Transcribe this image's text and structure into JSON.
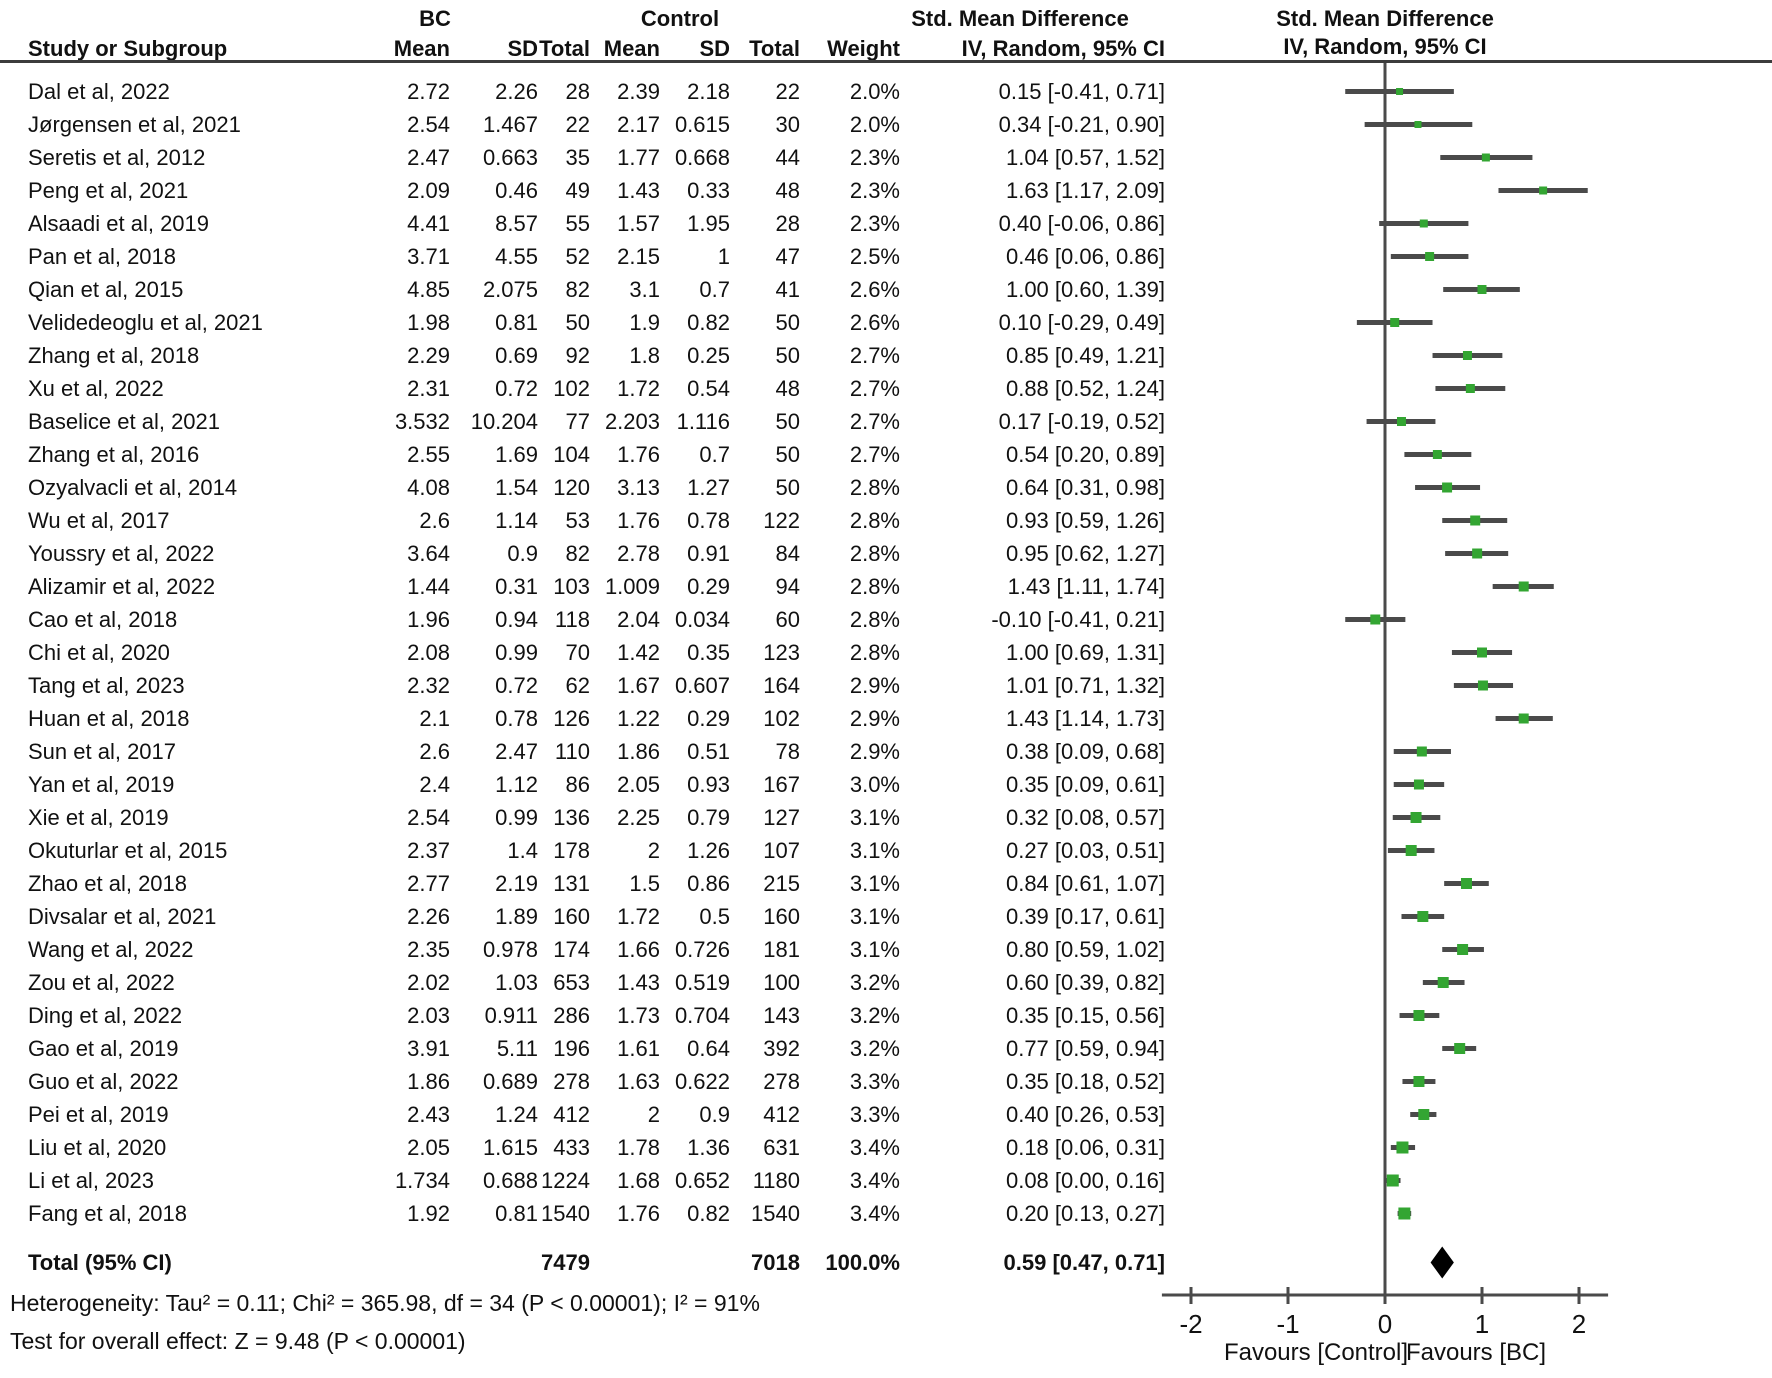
{
  "table": {
    "group_headers": {
      "bc": "BC",
      "control": "Control",
      "smd": "Std. Mean Difference"
    },
    "columns": {
      "study": "Study or Subgroup",
      "mean": "Mean",
      "sd": "SD",
      "total": "Total",
      "weight": "Weight",
      "ci": "IV, Random, 95% CI"
    },
    "heterogeneity": "Heterogeneity: Tau² = 0.11; Chi² = 365.98, df = 34 (P < 0.00001); I² = 91%",
    "overall_effect": "Test for overall effect: Z = 9.48 (P < 0.00001)"
  },
  "plot": {
    "header_line1": "Std. Mean Difference",
    "header_line2": "IV, Random, 95% CI",
    "line_color": "#4a4a4a",
    "marker_color": "#33a532",
    "diamond_color": "#000000"
  },
  "chart_data": {
    "type": "forest",
    "title": "Std. Mean Difference, IV, Random, 95% CI",
    "x_ticks": [
      -2,
      -1,
      0,
      1,
      2
    ],
    "x_range": [
      -2.3,
      2.3
    ],
    "favours": [
      "Favours [Control]",
      "Favours [BC]"
    ],
    "studies": [
      {
        "study": "Dal et al, 2022",
        "bc_mean": "2.72",
        "bc_sd": "2.26",
        "bc_total": "28",
        "c_mean": "2.39",
        "c_sd": "2.18",
        "c_total": "22",
        "weight": "2.0%",
        "weight_pct": 2.0,
        "smd": 0.15,
        "ci_low": -0.41,
        "ci_high": 0.71,
        "label": "0.15 [-0.41, 0.71]"
      },
      {
        "study": "Jørgensen et al, 2021",
        "bc_mean": "2.54",
        "bc_sd": "1.467",
        "bc_total": "22",
        "c_mean": "2.17",
        "c_sd": "0.615",
        "c_total": "30",
        "weight": "2.0%",
        "weight_pct": 2.0,
        "smd": 0.34,
        "ci_low": -0.21,
        "ci_high": 0.9,
        "label": "0.34 [-0.21, 0.90]"
      },
      {
        "study": "Seretis et al, 2012",
        "bc_mean": "2.47",
        "bc_sd": "0.663",
        "bc_total": "35",
        "c_mean": "1.77",
        "c_sd": "0.668",
        "c_total": "44",
        "weight": "2.3%",
        "weight_pct": 2.3,
        "smd": 1.04,
        "ci_low": 0.57,
        "ci_high": 1.52,
        "label": "1.04 [0.57, 1.52]"
      },
      {
        "study": "Peng et al, 2021",
        "bc_mean": "2.09",
        "bc_sd": "0.46",
        "bc_total": "49",
        "c_mean": "1.43",
        "c_sd": "0.33",
        "c_total": "48",
        "weight": "2.3%",
        "weight_pct": 2.3,
        "smd": 1.63,
        "ci_low": 1.17,
        "ci_high": 2.09,
        "label": "1.63 [1.17, 2.09]"
      },
      {
        "study": "Alsaadi et al, 2019",
        "bc_mean": "4.41",
        "bc_sd": "8.57",
        "bc_total": "55",
        "c_mean": "1.57",
        "c_sd": "1.95",
        "c_total": "28",
        "weight": "2.3%",
        "weight_pct": 2.3,
        "smd": 0.4,
        "ci_low": -0.06,
        "ci_high": 0.86,
        "label": "0.40 [-0.06, 0.86]"
      },
      {
        "study": "Pan et al, 2018",
        "bc_mean": "3.71",
        "bc_sd": "4.55",
        "bc_total": "52",
        "c_mean": "2.15",
        "c_sd": "1",
        "c_total": "47",
        "weight": "2.5%",
        "weight_pct": 2.5,
        "smd": 0.46,
        "ci_low": 0.06,
        "ci_high": 0.86,
        "label": "0.46 [0.06, 0.86]"
      },
      {
        "study": "Qian et al, 2015",
        "bc_mean": "4.85",
        "bc_sd": "2.075",
        "bc_total": "82",
        "c_mean": "3.1",
        "c_sd": "0.7",
        "c_total": "41",
        "weight": "2.6%",
        "weight_pct": 2.6,
        "smd": 1.0,
        "ci_low": 0.6,
        "ci_high": 1.39,
        "label": "1.00 [0.60, 1.39]"
      },
      {
        "study": "Velidedeoglu et al, 2021",
        "bc_mean": "1.98",
        "bc_sd": "0.81",
        "bc_total": "50",
        "c_mean": "1.9",
        "c_sd": "0.82",
        "c_total": "50",
        "weight": "2.6%",
        "weight_pct": 2.6,
        "smd": 0.1,
        "ci_low": -0.29,
        "ci_high": 0.49,
        "label": "0.10 [-0.29, 0.49]"
      },
      {
        "study": "Zhang et al, 2018",
        "bc_mean": "2.29",
        "bc_sd": "0.69",
        "bc_total": "92",
        "c_mean": "1.8",
        "c_sd": "0.25",
        "c_total": "50",
        "weight": "2.7%",
        "weight_pct": 2.7,
        "smd": 0.85,
        "ci_low": 0.49,
        "ci_high": 1.21,
        "label": "0.85 [0.49, 1.21]"
      },
      {
        "study": "Xu et al, 2022",
        "bc_mean": "2.31",
        "bc_sd": "0.72",
        "bc_total": "102",
        "c_mean": "1.72",
        "c_sd": "0.54",
        "c_total": "48",
        "weight": "2.7%",
        "weight_pct": 2.7,
        "smd": 0.88,
        "ci_low": 0.52,
        "ci_high": 1.24,
        "label": "0.88 [0.52, 1.24]"
      },
      {
        "study": "Baselice et al, 2021",
        "bc_mean": "3.532",
        "bc_sd": "10.204",
        "bc_total": "77",
        "c_mean": "2.203",
        "c_sd": "1.116",
        "c_total": "50",
        "weight": "2.7%",
        "weight_pct": 2.7,
        "smd": 0.17,
        "ci_low": -0.19,
        "ci_high": 0.52,
        "label": "0.17 [-0.19, 0.52]"
      },
      {
        "study": "Zhang et al, 2016",
        "bc_mean": "2.55",
        "bc_sd": "1.69",
        "bc_total": "104",
        "c_mean": "1.76",
        "c_sd": "0.7",
        "c_total": "50",
        "weight": "2.7%",
        "weight_pct": 2.7,
        "smd": 0.54,
        "ci_low": 0.2,
        "ci_high": 0.89,
        "label": "0.54 [0.20, 0.89]"
      },
      {
        "study": "Ozyalvacli et al, 2014",
        "bc_mean": "4.08",
        "bc_sd": "1.54",
        "bc_total": "120",
        "c_mean": "3.13",
        "c_sd": "1.27",
        "c_total": "50",
        "weight": "2.8%",
        "weight_pct": 2.8,
        "smd": 0.64,
        "ci_low": 0.31,
        "ci_high": 0.98,
        "label": "0.64 [0.31, 0.98]"
      },
      {
        "study": "Wu et al, 2017",
        "bc_mean": "2.6",
        "bc_sd": "1.14",
        "bc_total": "53",
        "c_mean": "1.76",
        "c_sd": "0.78",
        "c_total": "122",
        "weight": "2.8%",
        "weight_pct": 2.8,
        "smd": 0.93,
        "ci_low": 0.59,
        "ci_high": 1.26,
        "label": "0.93 [0.59, 1.26]"
      },
      {
        "study": "Youssry et al, 2022",
        "bc_mean": "3.64",
        "bc_sd": "0.9",
        "bc_total": "82",
        "c_mean": "2.78",
        "c_sd": "0.91",
        "c_total": "84",
        "weight": "2.8%",
        "weight_pct": 2.8,
        "smd": 0.95,
        "ci_low": 0.62,
        "ci_high": 1.27,
        "label": "0.95 [0.62, 1.27]"
      },
      {
        "study": "Alizamir et al, 2022",
        "bc_mean": "1.44",
        "bc_sd": "0.31",
        "bc_total": "103",
        "c_mean": "1.009",
        "c_sd": "0.29",
        "c_total": "94",
        "weight": "2.8%",
        "weight_pct": 2.8,
        "smd": 1.43,
        "ci_low": 1.11,
        "ci_high": 1.74,
        "label": "1.43 [1.11, 1.74]"
      },
      {
        "study": "Cao et al, 2018",
        "bc_mean": "1.96",
        "bc_sd": "0.94",
        "bc_total": "118",
        "c_mean": "2.04",
        "c_sd": "0.034",
        "c_total": "60",
        "weight": "2.8%",
        "weight_pct": 2.8,
        "smd": -0.1,
        "ci_low": -0.41,
        "ci_high": 0.21,
        "label": "-0.10 [-0.41, 0.21]"
      },
      {
        "study": "Chi et al, 2020",
        "bc_mean": "2.08",
        "bc_sd": "0.99",
        "bc_total": "70",
        "c_mean": "1.42",
        "c_sd": "0.35",
        "c_total": "123",
        "weight": "2.8%",
        "weight_pct": 2.8,
        "smd": 1.0,
        "ci_low": 0.69,
        "ci_high": 1.31,
        "label": "1.00 [0.69, 1.31]"
      },
      {
        "study": "Tang et al, 2023",
        "bc_mean": "2.32",
        "bc_sd": "0.72",
        "bc_total": "62",
        "c_mean": "1.67",
        "c_sd": "0.607",
        "c_total": "164",
        "weight": "2.9%",
        "weight_pct": 2.9,
        "smd": 1.01,
        "ci_low": 0.71,
        "ci_high": 1.32,
        "label": "1.01 [0.71, 1.32]"
      },
      {
        "study": "Huan et al, 2018",
        "bc_mean": "2.1",
        "bc_sd": "0.78",
        "bc_total": "126",
        "c_mean": "1.22",
        "c_sd": "0.29",
        "c_total": "102",
        "weight": "2.9%",
        "weight_pct": 2.9,
        "smd": 1.43,
        "ci_low": 1.14,
        "ci_high": 1.73,
        "label": "1.43 [1.14, 1.73]"
      },
      {
        "study": "Sun et al, 2017",
        "bc_mean": "2.6",
        "bc_sd": "2.47",
        "bc_total": "110",
        "c_mean": "1.86",
        "c_sd": "0.51",
        "c_total": "78",
        "weight": "2.9%",
        "weight_pct": 2.9,
        "smd": 0.38,
        "ci_low": 0.09,
        "ci_high": 0.68,
        "label": "0.38 [0.09, 0.68]"
      },
      {
        "study": "Yan et al, 2019",
        "bc_mean": "2.4",
        "bc_sd": "1.12",
        "bc_total": "86",
        "c_mean": "2.05",
        "c_sd": "0.93",
        "c_total": "167",
        "weight": "3.0%",
        "weight_pct": 3.0,
        "smd": 0.35,
        "ci_low": 0.09,
        "ci_high": 0.61,
        "label": "0.35 [0.09, 0.61]"
      },
      {
        "study": "Xie et al, 2019",
        "bc_mean": "2.54",
        "bc_sd": "0.99",
        "bc_total": "136",
        "c_mean": "2.25",
        "c_sd": "0.79",
        "c_total": "127",
        "weight": "3.1%",
        "weight_pct": 3.1,
        "smd": 0.32,
        "ci_low": 0.08,
        "ci_high": 0.57,
        "label": "0.32 [0.08, 0.57]"
      },
      {
        "study": "Okuturlar et al, 2015",
        "bc_mean": "2.37",
        "bc_sd": "1.4",
        "bc_total": "178",
        "c_mean": "2",
        "c_sd": "1.26",
        "c_total": "107",
        "weight": "3.1%",
        "weight_pct": 3.1,
        "smd": 0.27,
        "ci_low": 0.03,
        "ci_high": 0.51,
        "label": "0.27 [0.03, 0.51]"
      },
      {
        "study": "Zhao et al, 2018",
        "bc_mean": "2.77",
        "bc_sd": "2.19",
        "bc_total": "131",
        "c_mean": "1.5",
        "c_sd": "0.86",
        "c_total": "215",
        "weight": "3.1%",
        "weight_pct": 3.1,
        "smd": 0.84,
        "ci_low": 0.61,
        "ci_high": 1.07,
        "label": "0.84 [0.61, 1.07]"
      },
      {
        "study": "Divsalar et al, 2021",
        "bc_mean": "2.26",
        "bc_sd": "1.89",
        "bc_total": "160",
        "c_mean": "1.72",
        "c_sd": "0.5",
        "c_total": "160",
        "weight": "3.1%",
        "weight_pct": 3.1,
        "smd": 0.39,
        "ci_low": 0.17,
        "ci_high": 0.61,
        "label": "0.39 [0.17, 0.61]"
      },
      {
        "study": "Wang et al, 2022",
        "bc_mean": "2.35",
        "bc_sd": "0.978",
        "bc_total": "174",
        "c_mean": "1.66",
        "c_sd": "0.726",
        "c_total": "181",
        "weight": "3.1%",
        "weight_pct": 3.1,
        "smd": 0.8,
        "ci_low": 0.59,
        "ci_high": 1.02,
        "label": "0.80 [0.59, 1.02]"
      },
      {
        "study": "Zou et al, 2022",
        "bc_mean": "2.02",
        "bc_sd": "1.03",
        "bc_total": "653",
        "c_mean": "1.43",
        "c_sd": "0.519",
        "c_total": "100",
        "weight": "3.2%",
        "weight_pct": 3.2,
        "smd": 0.6,
        "ci_low": 0.39,
        "ci_high": 0.82,
        "label": "0.60 [0.39, 0.82]"
      },
      {
        "study": "Ding et al, 2022",
        "bc_mean": "2.03",
        "bc_sd": "0.911",
        "bc_total": "286",
        "c_mean": "1.73",
        "c_sd": "0.704",
        "c_total": "143",
        "weight": "3.2%",
        "weight_pct": 3.2,
        "smd": 0.35,
        "ci_low": 0.15,
        "ci_high": 0.56,
        "label": "0.35 [0.15, 0.56]"
      },
      {
        "study": "Gao et al, 2019",
        "bc_mean": "3.91",
        "bc_sd": "5.11",
        "bc_total": "196",
        "c_mean": "1.61",
        "c_sd": "0.64",
        "c_total": "392",
        "weight": "3.2%",
        "weight_pct": 3.2,
        "smd": 0.77,
        "ci_low": 0.59,
        "ci_high": 0.94,
        "label": "0.77 [0.59, 0.94]"
      },
      {
        "study": "Guo et al, 2022",
        "bc_mean": "1.86",
        "bc_sd": "0.689",
        "bc_total": "278",
        "c_mean": "1.63",
        "c_sd": "0.622",
        "c_total": "278",
        "weight": "3.3%",
        "weight_pct": 3.3,
        "smd": 0.35,
        "ci_low": 0.18,
        "ci_high": 0.52,
        "label": "0.35 [0.18, 0.52]"
      },
      {
        "study": "Pei et al, 2019",
        "bc_mean": "2.43",
        "bc_sd": "1.24",
        "bc_total": "412",
        "c_mean": "2",
        "c_sd": "0.9",
        "c_total": "412",
        "weight": "3.3%",
        "weight_pct": 3.3,
        "smd": 0.4,
        "ci_low": 0.26,
        "ci_high": 0.53,
        "label": "0.40 [0.26, 0.53]"
      },
      {
        "study": "Liu et al, 2020",
        "bc_mean": "2.05",
        "bc_sd": "1.615",
        "bc_total": "433",
        "c_mean": "1.78",
        "c_sd": "1.36",
        "c_total": "631",
        "weight": "3.4%",
        "weight_pct": 3.4,
        "smd": 0.18,
        "ci_low": 0.06,
        "ci_high": 0.31,
        "label": "0.18 [0.06, 0.31]"
      },
      {
        "study": "Li et al, 2023",
        "bc_mean": "1.734",
        "bc_sd": "0.688",
        "bc_total": "1224",
        "c_mean": "1.68",
        "c_sd": "0.652",
        "c_total": "1180",
        "weight": "3.4%",
        "weight_pct": 3.4,
        "smd": 0.08,
        "ci_low": 0.0,
        "ci_high": 0.16,
        "label": "0.08 [0.00, 0.16]"
      },
      {
        "study": "Fang et al, 2018",
        "bc_mean": "1.92",
        "bc_sd": "0.81",
        "bc_total": "1540",
        "c_mean": "1.76",
        "c_sd": "0.82",
        "c_total": "1540",
        "weight": "3.4%",
        "weight_pct": 3.4,
        "smd": 0.2,
        "ci_low": 0.13,
        "ci_high": 0.27,
        "label": "0.20 [0.13, 0.27]"
      }
    ],
    "overall": {
      "label": "Total (95% CI)",
      "bc_total": "7479",
      "c_total": "7018",
      "weight": "100.0%",
      "smd": 0.59,
      "ci_low": 0.47,
      "ci_high": 0.71,
      "ci_label": "0.59 [0.47, 0.71]"
    }
  }
}
